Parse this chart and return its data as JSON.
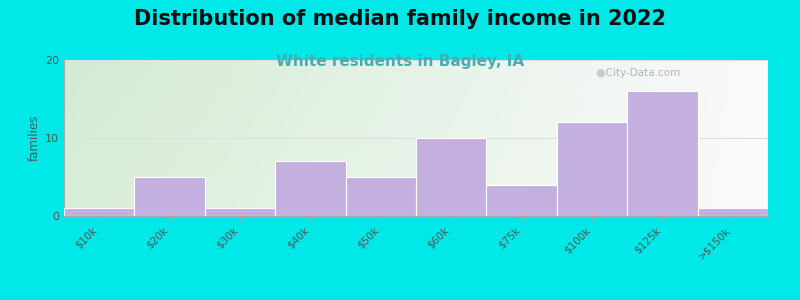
{
  "title": "Distribution of median family income in 2022",
  "subtitle": "White residents in Bagley, IA",
  "ylabel": "families",
  "categories": [
    "$10k",
    "$20k",
    "$30k",
    "$40k",
    "$50k",
    "$60k",
    "$75k",
    "$100k",
    "$125k",
    ">$150k"
  ],
  "values": [
    1,
    5,
    1,
    7,
    5,
    10,
    4,
    12,
    16,
    1
  ],
  "bar_color": "#c4b0e0",
  "ylim": [
    0,
    20
  ],
  "yticks": [
    0,
    10,
    20
  ],
  "background_outer": "#00e8e8",
  "title_fontsize": 15,
  "subtitle_fontsize": 11,
  "subtitle_color": "#4aadad",
  "watermark": "  City-Data.com",
  "title_color": "#111111",
  "axis_label_color": "#555555",
  "tick_color": "#555555",
  "grid_color": "#dddddd"
}
